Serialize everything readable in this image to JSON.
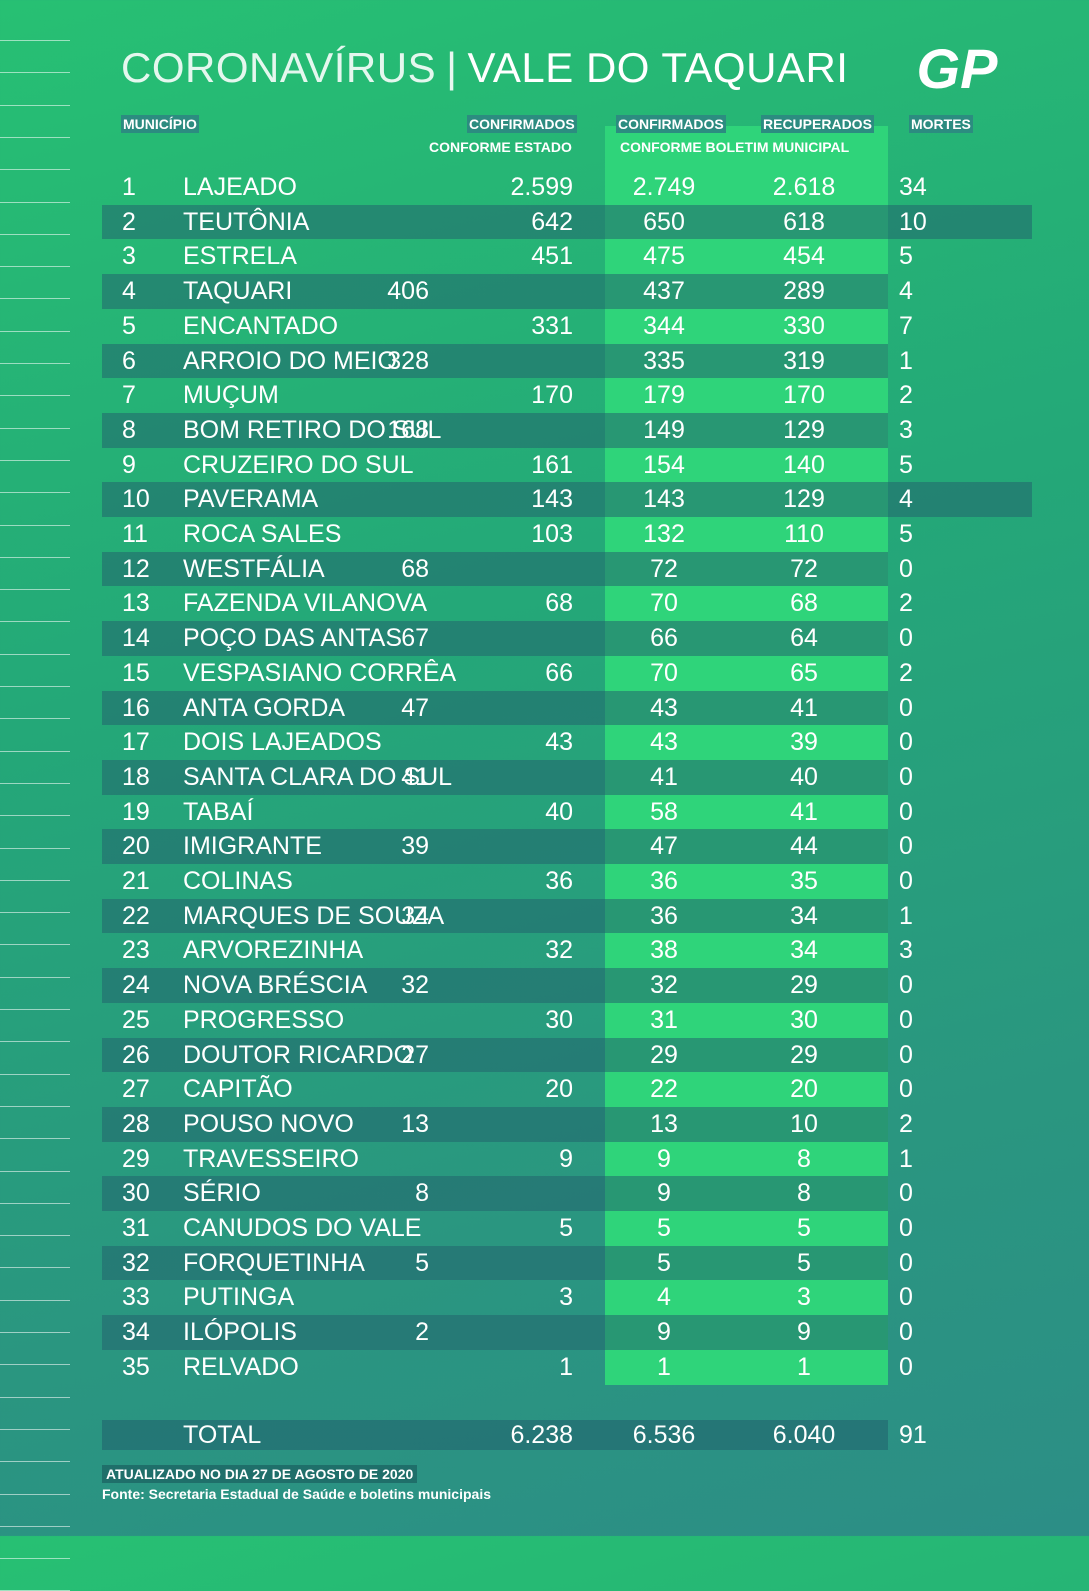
{
  "title": {
    "part1": "CORONAVÍRUS",
    "separator": "|",
    "part2": "VALE DO TAQUARI"
  },
  "logo_text": "GP",
  "headers": {
    "municipio": "MUNICÍPIO",
    "confirmados_estado": "CONFIRMADOS",
    "conforme_estado": "CONFORME ESTADO",
    "confirmados_boletim": "CONFIRMADOS",
    "recuperados": "RECUPERADOS",
    "conforme_boletim": "CONFORME BOLETIM MUNICIPAL",
    "mortes": "MORTES"
  },
  "rows": [
    {
      "n": "1",
      "name": "LAJEADO",
      "estado": "2.599",
      "confirmados": "2.749",
      "recuperados": "2.618",
      "mortes": "34"
    },
    {
      "n": "2",
      "name": "TEUTÔNIA",
      "estado": "642",
      "confirmados": "650",
      "recuperados": "618",
      "mortes": "10"
    },
    {
      "n": "3",
      "name": "ESTRELA",
      "estado": "451",
      "confirmados": "475",
      "recuperados": "454",
      "mortes": "5"
    },
    {
      "n": "4",
      "name": "TAQUARI",
      "estado": "406",
      "confirmados": "437",
      "recuperados": "289",
      "mortes": "4"
    },
    {
      "n": "5",
      "name": "ENCANTADO",
      "estado": "331",
      "confirmados": "344",
      "recuperados": "330",
      "mortes": "7"
    },
    {
      "n": "6",
      "name": "ARROIO DO MEIO",
      "estado": "328",
      "confirmados": "335",
      "recuperados": "319",
      "mortes": "1"
    },
    {
      "n": "7",
      "name": "MUÇUM",
      "estado": "170",
      "confirmados": "179",
      "recuperados": "170",
      "mortes": "2"
    },
    {
      "n": "8",
      "name": "BOM RETIRO DO SUL",
      "estado": "168",
      "confirmados": "149",
      "recuperados": "129",
      "mortes": "3"
    },
    {
      "n": "9",
      "name": "CRUZEIRO DO SUL",
      "estado": "161",
      "confirmados": "154",
      "recuperados": "140",
      "mortes": "5"
    },
    {
      "n": "10",
      "name": "PAVERAMA",
      "estado": "143",
      "confirmados": "143",
      "recuperados": "129",
      "mortes": "4"
    },
    {
      "n": "11",
      "name": "ROCA SALES",
      "estado": "103",
      "confirmados": "132",
      "recuperados": "110",
      "mortes": "5"
    },
    {
      "n": "12",
      "name": "WESTFÁLIA",
      "estado": "68",
      "confirmados": "72",
      "recuperados": "72",
      "mortes": "0"
    },
    {
      "n": "13",
      "name": "FAZENDA VILANOVA",
      "estado": "68",
      "confirmados": "70",
      "recuperados": "68",
      "mortes": "2"
    },
    {
      "n": "14",
      "name": "POÇO DAS ANTAS",
      "estado": "67",
      "confirmados": "66",
      "recuperados": "64",
      "mortes": "0"
    },
    {
      "n": "15",
      "name": "VESPASIANO CORRÊA",
      "estado": "66",
      "confirmados": "70",
      "recuperados": "65",
      "mortes": "2"
    },
    {
      "n": "16",
      "name": "ANTA GORDA",
      "estado": "47",
      "confirmados": "43",
      "recuperados": "41",
      "mortes": "0"
    },
    {
      "n": "17",
      "name": "DOIS LAJEADOS",
      "estado": "43",
      "confirmados": "43",
      "recuperados": "39",
      "mortes": "0"
    },
    {
      "n": "18",
      "name": "SANTA CLARA DO SUL",
      "estado": "41",
      "confirmados": "41",
      "recuperados": "40",
      "mortes": "0"
    },
    {
      "n": "19",
      "name": "TABAÍ",
      "estado": "40",
      "confirmados": "58",
      "recuperados": "41",
      "mortes": "0"
    },
    {
      "n": "20",
      "name": "IMIGRANTE",
      "estado": "39",
      "confirmados": "47",
      "recuperados": "44",
      "mortes": "0"
    },
    {
      "n": "21",
      "name": "COLINAS",
      "estado": "36",
      "confirmados": "36",
      "recuperados": "35",
      "mortes": "0"
    },
    {
      "n": "22",
      "name": "MARQUES DE SOUZA",
      "estado": "34",
      "confirmados": "36",
      "recuperados": "34",
      "mortes": "1"
    },
    {
      "n": "23",
      "name": "ARVOREZINHA",
      "estado": "32",
      "confirmados": "38",
      "recuperados": "34",
      "mortes": "3"
    },
    {
      "n": "24",
      "name": "NOVA BRÉSCIA",
      "estado": "32",
      "confirmados": "32",
      "recuperados": "29",
      "mortes": "0"
    },
    {
      "n": "25",
      "name": "PROGRESSO",
      "estado": "30",
      "confirmados": "31",
      "recuperados": "30",
      "mortes": "0"
    },
    {
      "n": "26",
      "name": "DOUTOR RICARDO",
      "estado": "27",
      "confirmados": "29",
      "recuperados": "29",
      "mortes": "0"
    },
    {
      "n": "27",
      "name": "CAPITÃO",
      "estado": "20",
      "confirmados": "22",
      "recuperados": "20",
      "mortes": "0"
    },
    {
      "n": "28",
      "name": "POUSO NOVO",
      "estado": "13",
      "confirmados": "13",
      "recuperados": "10",
      "mortes": "2"
    },
    {
      "n": "29",
      "name": "TRAVESSEIRO",
      "estado": "9",
      "confirmados": "9",
      "recuperados": "8",
      "mortes": "1"
    },
    {
      "n": "30",
      "name": "SÉRIO",
      "estado": "8",
      "confirmados": "9",
      "recuperados": "8",
      "mortes": "0"
    },
    {
      "n": "31",
      "name": "CANUDOS DO VALE",
      "estado": "5",
      "confirmados": "5",
      "recuperados": "5",
      "mortes": "0"
    },
    {
      "n": "32",
      "name": "FORQUETINHA",
      "estado": "5",
      "confirmados": "5",
      "recuperados": "5",
      "mortes": "0"
    },
    {
      "n": "33",
      "name": "PUTINGA",
      "estado": "3",
      "confirmados": "4",
      "recuperados": "3",
      "mortes": "0"
    },
    {
      "n": "34",
      "name": "ILÓPOLIS",
      "estado": "2",
      "confirmados": "9",
      "recuperados": "9",
      "mortes": "0"
    },
    {
      "n": "35",
      "name": "RELVADO",
      "estado": "1",
      "confirmados": "1",
      "recuperados": "1",
      "mortes": "0"
    }
  ],
  "total": {
    "label": "TOTAL",
    "estado": "6.238",
    "confirmados": "6.536",
    "recuperados": "6.040",
    "mortes": "91"
  },
  "footer": {
    "updated": "ATUALIZADO NO DIA 27 DE AGOSTO DE 2020",
    "source": "Fonte: Secretaria Estadual de Saúde e boletins municipais"
  }
}
